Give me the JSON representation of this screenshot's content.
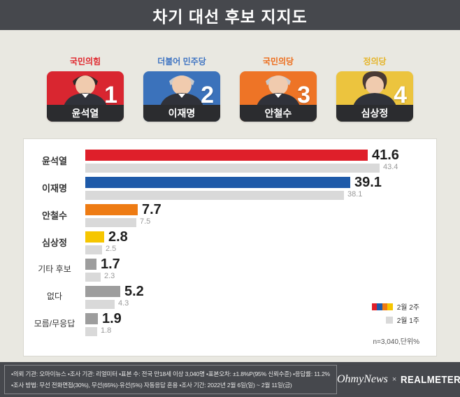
{
  "header": {
    "title": "차기 대선 후보 지지도"
  },
  "candidates": [
    {
      "party": "국민의힘",
      "name": "윤석열",
      "rank": "1",
      "card_color": "#d92630",
      "party_color": "#e0242b"
    },
    {
      "party": "더불어 민주당",
      "name": "이재명",
      "rank": "2",
      "card_color": "#3b72bb",
      "party_color": "#3f74c2"
    },
    {
      "party": "국민의당",
      "name": "안철수",
      "rank": "3",
      "card_color": "#ee7426",
      "party_color": "#ed6c1a"
    },
    {
      "party": "정의당",
      "name": "심상정",
      "rank": "4",
      "card_color": "#ecc43e",
      "party_color": "#e5b428"
    }
  ],
  "chart_data": {
    "type": "bar",
    "orientation": "horizontal",
    "title": "차기 대선 후보 지지도",
    "unit": "%",
    "sample_note": "n=3,040,단위%",
    "categories": [
      "윤석열",
      "이재명",
      "안철수",
      "심상정",
      "기타 후보",
      "없다",
      "모름/무응답"
    ],
    "series": [
      {
        "name": "2월 2주",
        "values": [
          41.6,
          39.1,
          7.7,
          2.8,
          1.7,
          5.2,
          1.9
        ]
      },
      {
        "name": "2월 1주",
        "values": [
          43.4,
          38.1,
          7.5,
          2.5,
          2.3,
          4.3,
          1.8
        ]
      }
    ],
    "bar_colors": [
      "#df1f2a",
      "#1e5aa9",
      "#ee7b13",
      "#f6c600",
      "#9d9d9d",
      "#9d9d9d",
      "#9d9d9d"
    ],
    "prev_bar_color": "#d9d9d9",
    "legend": {
      "current_label": "2월 2주",
      "current_colors": [
        "#df1f2a",
        "#1e5aa9",
        "#ee7b13",
        "#f6c600"
      ],
      "previous_label": "2월 1주",
      "previous_color": "#d9d9d9"
    },
    "legend_position": "bottom-right",
    "xlim": [
      0,
      45
    ]
  },
  "footer": {
    "line1": "•의뢰 기관: 오마이뉴스 •조사 기관: 리얼미터 •표본 수: 전국 만18세 이상 3,040명 •표본오차: ±1.8%P(95% 신뢰수준) •응답률: 11.2%",
    "line2": "•조사 방법: 무선 전화면접(30%), 무선(65%)·유선(5%) 자동응답 혼용 •조사 기간: 2022년 2월 6일(일) ~ 2월 11일(금)",
    "logo_left": "OhmyNews",
    "logo_sep": "×",
    "logo_right": "REALMETER"
  }
}
